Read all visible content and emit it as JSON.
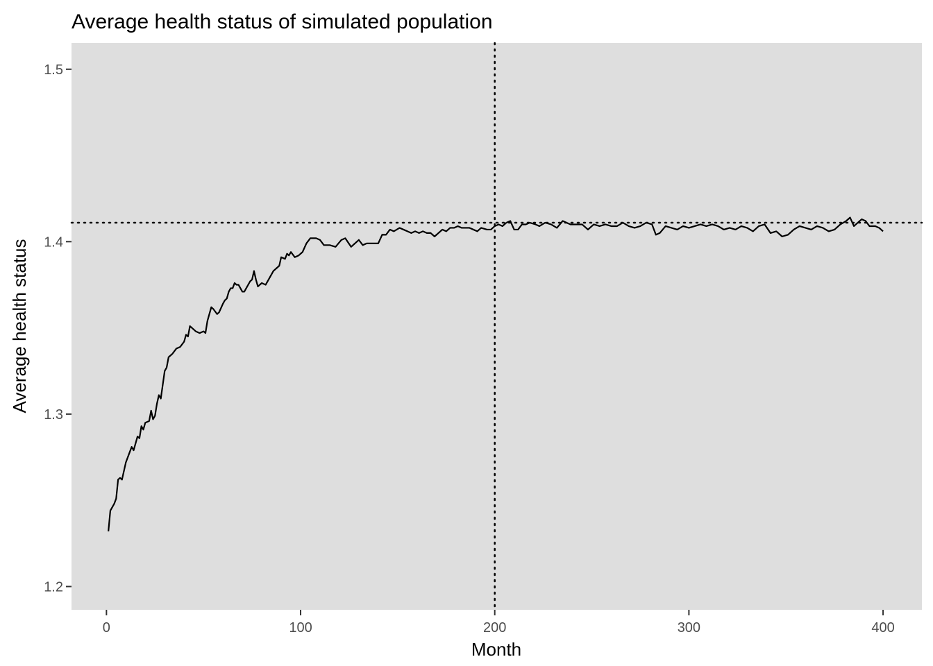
{
  "chart_data": {
    "type": "line",
    "title": "Average health status of simulated population",
    "xlabel": "Month",
    "ylabel": "Average health status",
    "xlim": [
      -18,
      420
    ],
    "ylim": [
      1.1865,
      1.5152
    ],
    "x_ticks": [
      0,
      100,
      200,
      300,
      400
    ],
    "y_ticks": [
      1.2,
      1.3,
      1.4,
      1.5
    ],
    "x_tick_labels": [
      "0",
      "100",
      "200",
      "300",
      "400"
    ],
    "y_tick_labels": [
      "1.2",
      "1.3",
      "1.4",
      "1.5"
    ],
    "grid": false,
    "legend": "none",
    "panel_color": "#dedede",
    "line_color": "#000000",
    "reference_lines": {
      "vertical_x": 200,
      "horizontal_y": 1.411,
      "style": "dotted"
    },
    "series": [
      {
        "points": [
          [
            1,
            1.232
          ],
          [
            2,
            1.244
          ],
          [
            4,
            1.248
          ],
          [
            5,
            1.251
          ],
          [
            6,
            1.262
          ],
          [
            7,
            1.263
          ],
          [
            8,
            1.262
          ],
          [
            10,
            1.272
          ],
          [
            12,
            1.278
          ],
          [
            13,
            1.281
          ],
          [
            14,
            1.279
          ],
          [
            16,
            1.287
          ],
          [
            17,
            1.286
          ],
          [
            18,
            1.293
          ],
          [
            19,
            1.291
          ],
          [
            20,
            1.295
          ],
          [
            22,
            1.296
          ],
          [
            23,
            1.302
          ],
          [
            24,
            1.297
          ],
          [
            25,
            1.299
          ],
          [
            26,
            1.306
          ],
          [
            27,
            1.311
          ],
          [
            28,
            1.309
          ],
          [
            30,
            1.325
          ],
          [
            31,
            1.327
          ],
          [
            32,
            1.333
          ],
          [
            34,
            1.335
          ],
          [
            36,
            1.338
          ],
          [
            38,
            1.339
          ],
          [
            40,
            1.342
          ],
          [
            41,
            1.346
          ],
          [
            42,
            1.345
          ],
          [
            43,
            1.351
          ],
          [
            44,
            1.35
          ],
          [
            46,
            1.348
          ],
          [
            48,
            1.347
          ],
          [
            50,
            1.348
          ],
          [
            51,
            1.347
          ],
          [
            52,
            1.354
          ],
          [
            54,
            1.362
          ],
          [
            55,
            1.361
          ],
          [
            57,
            1.358
          ],
          [
            58,
            1.359
          ],
          [
            60,
            1.364
          ],
          [
            61,
            1.366
          ],
          [
            62,
            1.367
          ],
          [
            63,
            1.371
          ],
          [
            64,
            1.373
          ],
          [
            65,
            1.373
          ],
          [
            66,
            1.376
          ],
          [
            67,
            1.375
          ],
          [
            68,
            1.375
          ],
          [
            70,
            1.371
          ],
          [
            71,
            1.371
          ],
          [
            72,
            1.373
          ],
          [
            74,
            1.377
          ],
          [
            75,
            1.378
          ],
          [
            76,
            1.383
          ],
          [
            77,
            1.378
          ],
          [
            78,
            1.374
          ],
          [
            80,
            1.376
          ],
          [
            82,
            1.375
          ],
          [
            84,
            1.379
          ],
          [
            86,
            1.383
          ],
          [
            88,
            1.385
          ],
          [
            89,
            1.386
          ],
          [
            90,
            1.391
          ],
          [
            92,
            1.39
          ],
          [
            93,
            1.393
          ],
          [
            94,
            1.392
          ],
          [
            95,
            1.394
          ],
          [
            97,
            1.391
          ],
          [
            99,
            1.392
          ],
          [
            101,
            1.394
          ],
          [
            103,
            1.399
          ],
          [
            105,
            1.402
          ],
          [
            108,
            1.402
          ],
          [
            110,
            1.401
          ],
          [
            112,
            1.398
          ],
          [
            115,
            1.398
          ],
          [
            118,
            1.397
          ],
          [
            121,
            1.401
          ],
          [
            123,
            1.402
          ],
          [
            126,
            1.397
          ],
          [
            128,
            1.399
          ],
          [
            130,
            1.401
          ],
          [
            132,
            1.398
          ],
          [
            134,
            1.399
          ],
          [
            137,
            1.399
          ],
          [
            140,
            1.399
          ],
          [
            142,
            1.404
          ],
          [
            144,
            1.404
          ],
          [
            146,
            1.407
          ],
          [
            148,
            1.406
          ],
          [
            151,
            1.408
          ],
          [
            153,
            1.407
          ],
          [
            155,
            1.406
          ],
          [
            157,
            1.405
          ],
          [
            159,
            1.406
          ],
          [
            161,
            1.405
          ],
          [
            163,
            1.406
          ],
          [
            165,
            1.405
          ],
          [
            167,
            1.405
          ],
          [
            169,
            1.403
          ],
          [
            171,
            1.405
          ],
          [
            173,
            1.407
          ],
          [
            175,
            1.406
          ],
          [
            177,
            1.408
          ],
          [
            179,
            1.408
          ],
          [
            181,
            1.409
          ],
          [
            183,
            1.408
          ],
          [
            185,
            1.408
          ],
          [
            187,
            1.408
          ],
          [
            189,
            1.407
          ],
          [
            191,
            1.406
          ],
          [
            193,
            1.408
          ],
          [
            196,
            1.407
          ],
          [
            198,
            1.407
          ],
          [
            200,
            1.409
          ],
          [
            202,
            1.41
          ],
          [
            204,
            1.409
          ],
          [
            206,
            1.411
          ],
          [
            208,
            1.412
          ],
          [
            210,
            1.407
          ],
          [
            212,
            1.407
          ],
          [
            214,
            1.41
          ],
          [
            216,
            1.41
          ],
          [
            218,
            1.411
          ],
          [
            221,
            1.41
          ],
          [
            223,
            1.409
          ],
          [
            226,
            1.411
          ],
          [
            229,
            1.41
          ],
          [
            232,
            1.408
          ],
          [
            235,
            1.412
          ],
          [
            237,
            1.411
          ],
          [
            239,
            1.41
          ],
          [
            242,
            1.41
          ],
          [
            245,
            1.41
          ],
          [
            248,
            1.407
          ],
          [
            251,
            1.41
          ],
          [
            254,
            1.409
          ],
          [
            257,
            1.41
          ],
          [
            260,
            1.409
          ],
          [
            263,
            1.409
          ],
          [
            266,
            1.411
          ],
          [
            269,
            1.409
          ],
          [
            272,
            1.408
          ],
          [
            275,
            1.409
          ],
          [
            278,
            1.411
          ],
          [
            281,
            1.41
          ],
          [
            283,
            1.404
          ],
          [
            285,
            1.405
          ],
          [
            288,
            1.409
          ],
          [
            291,
            1.408
          ],
          [
            294,
            1.407
          ],
          [
            297,
            1.409
          ],
          [
            300,
            1.408
          ],
          [
            303,
            1.409
          ],
          [
            306,
            1.41
          ],
          [
            309,
            1.409
          ],
          [
            312,
            1.41
          ],
          [
            315,
            1.409
          ],
          [
            318,
            1.407
          ],
          [
            321,
            1.408
          ],
          [
            324,
            1.407
          ],
          [
            327,
            1.409
          ],
          [
            330,
            1.408
          ],
          [
            333,
            1.406
          ],
          [
            336,
            1.409
          ],
          [
            339,
            1.41
          ],
          [
            342,
            1.405
          ],
          [
            345,
            1.406
          ],
          [
            348,
            1.403
          ],
          [
            351,
            1.404
          ],
          [
            354,
            1.407
          ],
          [
            357,
            1.409
          ],
          [
            360,
            1.408
          ],
          [
            363,
            1.407
          ],
          [
            366,
            1.409
          ],
          [
            369,
            1.408
          ],
          [
            372,
            1.406
          ],
          [
            375,
            1.407
          ],
          [
            378,
            1.41
          ],
          [
            381,
            1.412
          ],
          [
            383,
            1.414
          ],
          [
            385,
            1.409
          ],
          [
            387,
            1.411
          ],
          [
            389,
            1.413
          ],
          [
            391,
            1.412
          ],
          [
            393,
            1.409
          ],
          [
            396,
            1.409
          ],
          [
            398,
            1.408
          ],
          [
            400,
            1.406
          ]
        ]
      }
    ]
  }
}
